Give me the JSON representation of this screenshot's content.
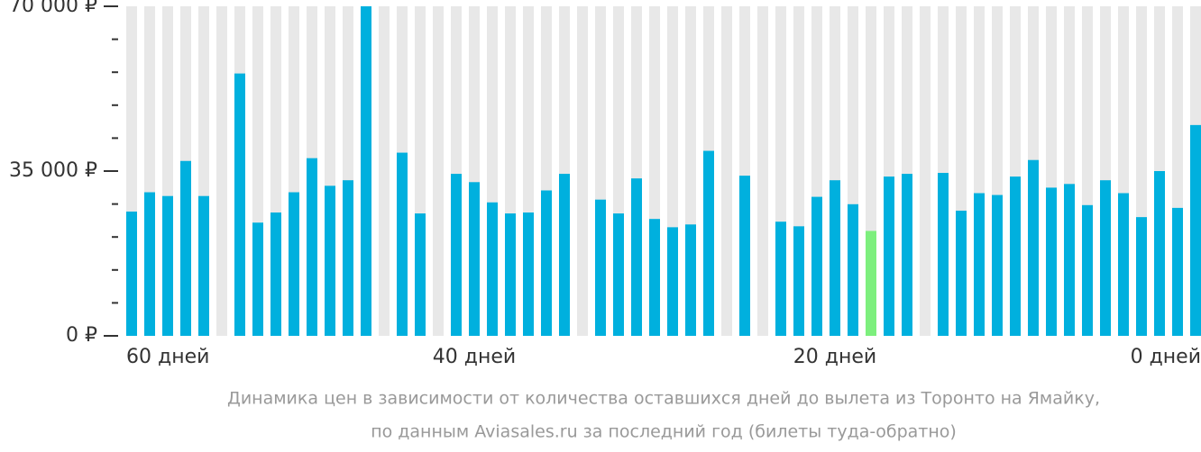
{
  "chart_data": {
    "type": "bar",
    "caption": [
      "Динамика цен в зависимости от количества оставшихся дней до вылета из Торонто на Ямайку,",
      "по данным Aviasales.ru за последний год (билеты туда-обратно)"
    ],
    "categories": [
      "60 дней",
      null,
      null,
      null,
      null,
      null,
      null,
      null,
      null,
      null,
      null,
      null,
      null,
      null,
      null,
      null,
      null,
      null,
      null,
      "40 дней",
      null,
      null,
      null,
      null,
      null,
      null,
      null,
      null,
      null,
      null,
      null,
      null,
      null,
      null,
      null,
      null,
      null,
      null,
      null,
      "20 дней",
      null,
      null,
      null,
      null,
      null,
      null,
      null,
      null,
      null,
      null,
      null,
      null,
      null,
      null,
      null,
      null,
      null,
      null,
      null,
      "0 дней"
    ],
    "values": [
      26400,
      30500,
      29700,
      37150,
      29700,
      null,
      55730,
      24050,
      26200,
      30500,
      37740,
      31870,
      33050,
      70000,
      null,
      38910,
      26000,
      null,
      34410,
      32650,
      28350,
      26000,
      26200,
      30890,
      34410,
      null,
      28940,
      26000,
      33440,
      24830,
      23070,
      23660,
      39300,
      null,
      34020,
      null,
      24250,
      23270,
      29530,
      33050,
      27960,
      22290,
      33830,
      34410,
      null,
      34610,
      26590,
      30310,
      29920,
      33830,
      37350,
      31480,
      32260,
      27770,
      33050,
      30310,
      25220,
      35000,
      27180,
      44780
    ],
    "colors": [
      "#00b0de",
      "#00b0de",
      "#00b0de",
      "#00b0de",
      "#00b0de",
      null,
      "#00b0de",
      "#00b0de",
      "#00b0de",
      "#00b0de",
      "#00b0de",
      "#00b0de",
      "#00b0de",
      "#00b0de",
      null,
      "#00b0de",
      "#00b0de",
      null,
      "#00b0de",
      "#00b0de",
      "#00b0de",
      "#00b0de",
      "#00b0de",
      "#00b0de",
      "#00b0de",
      null,
      "#00b0de",
      "#00b0de",
      "#00b0de",
      "#00b0de",
      "#00b0de",
      "#00b0de",
      "#00b0de",
      null,
      "#00b0de",
      null,
      "#00b0de",
      "#00b0de",
      "#00b0de",
      "#00b0de",
      "#00b0de",
      "#7def7d",
      "#00b0de",
      "#00b0de",
      null,
      "#00b0de",
      "#00b0de",
      "#00b0de",
      "#00b0de",
      "#00b0de",
      "#00b0de",
      "#00b0de",
      "#00b0de",
      "#00b0de",
      "#00b0de",
      "#00b0de",
      "#00b0de",
      "#00b0de",
      "#00b0de",
      "#00b0de"
    ],
    "ylim": [
      0,
      70000
    ],
    "yticks": [
      {
        "value": 0,
        "label": "0 ₽"
      },
      {
        "value": 35000,
        "label": "35 000 ₽"
      },
      {
        "value": 70000,
        "label": "70 000 ₽"
      }
    ],
    "minor_yticks": [
      7000,
      14000,
      21000,
      28000,
      42000,
      49000,
      56000,
      63000
    ]
  }
}
